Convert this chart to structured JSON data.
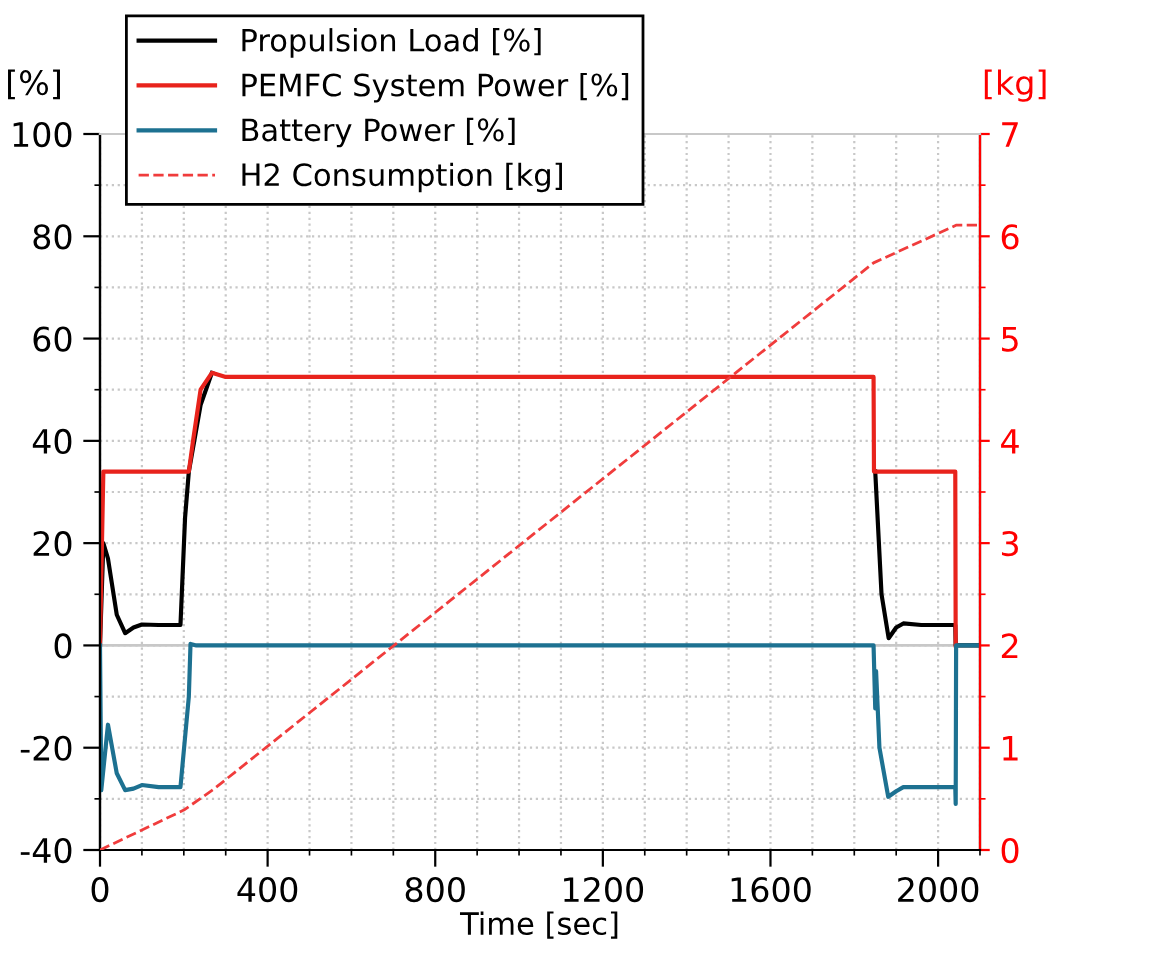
{
  "chart_data": {
    "type": "line",
    "xlabel": "Time [sec]",
    "ylabel": "[%]",
    "y2label": "[kg]",
    "xlim": [
      0,
      2100
    ],
    "xticks": [
      0,
      400,
      800,
      1200,
      1600,
      2000
    ],
    "ylim": [
      -40,
      100
    ],
    "yticks": [
      -40,
      -20,
      0,
      20,
      40,
      60,
      80,
      100
    ],
    "y2lim": [
      0,
      7
    ],
    "y2ticks": [
      0,
      1,
      2,
      3,
      4,
      5,
      6,
      7
    ],
    "grid": true,
    "legend": "top left",
    "line_style": "solid",
    "ref_lines": [
      {
        "axis": "y",
        "value": 0,
        "color": "#c8c8c8"
      }
    ],
    "series": [
      {
        "name": "Propulsion Load [%]",
        "color": "#000000",
        "x": [
          0,
          8,
          19,
          40,
          60,
          80,
          100,
          140,
          192,
          203,
          212,
          240,
          267,
          300,
          1000,
          1846,
          1850,
          1865,
          1882,
          1900,
          1917,
          1960,
          2036,
          2041,
          2042,
          2095
        ],
        "values": [
          0,
          20,
          17,
          6,
          2.4,
          3.5,
          4.1,
          4,
          4,
          25,
          34,
          47,
          53.3,
          null,
          null,
          null,
          34,
          10,
          1.4,
          3.5,
          4.3,
          4,
          4,
          4,
          0,
          0
        ]
      },
      {
        "name": "PEMFC System Power [%]",
        "color": "#e8231c",
        "x": [
          0,
          8,
          212,
          222,
          240,
          267,
          300,
          1000,
          1846,
          1847,
          2041,
          2042
        ],
        "values": [
          0,
          34,
          34,
          40,
          50,
          53.3,
          52.5,
          52.5,
          52.5,
          34,
          34,
          0
        ]
      },
      {
        "name": "Battery Power [%]",
        "color": "#1d7191",
        "x": [
          0,
          3,
          19,
          40,
          60,
          80,
          100,
          140,
          192,
          212,
          216,
          230,
          300,
          1000,
          1846,
          1850,
          1852,
          1860,
          1881,
          1900,
          1917,
          1960,
          2041,
          2042,
          2043,
          2095
        ],
        "values": [
          0,
          -28.3,
          -15.5,
          -25,
          -28.3,
          -28,
          -27.3,
          -27.7,
          -27.7,
          -10,
          0.3,
          0,
          0,
          0,
          0,
          -12.3,
          -5,
          -20,
          -29.6,
          -28.5,
          -27.7,
          -27.7,
          -27.7,
          -31,
          0,
          0
        ]
      },
      {
        "name": "H2 Consumption [kg]",
        "color": "#f03c3c",
        "axis": "y2",
        "line_style": "dashed",
        "x": [
          0,
          200,
          270,
          1846,
          2044,
          2100
        ],
        "values": [
          0,
          0.39,
          0.59,
          5.74,
          6.11,
          6.11
        ]
      }
    ]
  }
}
